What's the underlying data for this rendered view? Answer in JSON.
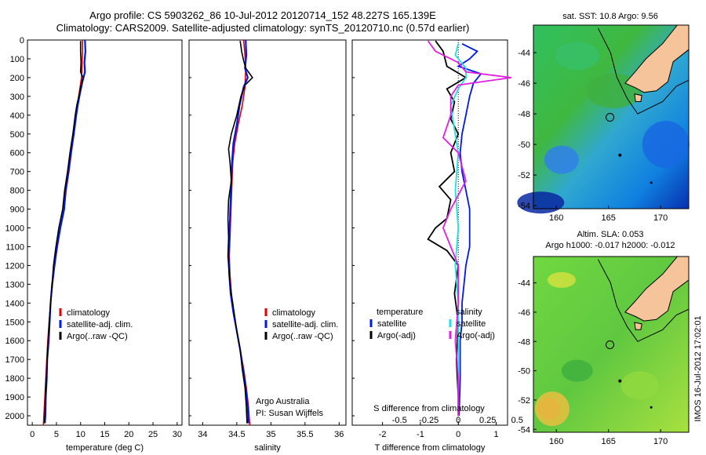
{
  "title_line1": "Argo profile: CS 5903262_86 10-Jul-2012 20120714_152 48.227S 165.139E",
  "title_line2": "Climatology: CARS2009. Satellite-adjusted climatology: synTS_20120710.nc (0.57d earlier)",
  "vertical_stamp": "IMOS 16-Jul-2012 17:02:01",
  "colors": {
    "climatology": "#e00000",
    "satellite": "#0018e8",
    "argo": "#000000",
    "sal_satellite": "#20e0e0",
    "sal_argo": "#e020e0",
    "land": "#f5c49a"
  },
  "chart_data": [
    {
      "type": "line",
      "panel": "temperature",
      "xlabel": "temperature (deg C)",
      "ylabel": "",
      "xlim": [
        -1,
        31
      ],
      "ylim": [
        2050,
        0
      ],
      "xticks": [
        0,
        5,
        10,
        15,
        20,
        25,
        30
      ],
      "yticks": [
        0,
        100,
        200,
        300,
        400,
        500,
        600,
        700,
        800,
        900,
        1000,
        1100,
        1200,
        1300,
        1400,
        1500,
        1600,
        1700,
        1800,
        1900,
        2000
      ],
      "legend": [
        "climatology",
        "satellite-adj. clim.",
        "Argo(..raw -QC)"
      ],
      "legend_position": "bottom-center",
      "series": [
        {
          "name": "climatology",
          "points": [
            [
              10.4,
              0
            ],
            [
              10.4,
              60
            ],
            [
              10.3,
              120
            ],
            [
              10.2,
              200
            ],
            [
              9.9,
              250
            ],
            [
              9.6,
              300
            ],
            [
              9.1,
              400
            ],
            [
              8.6,
              500
            ],
            [
              8.1,
              600
            ],
            [
              7.6,
              700
            ],
            [
              7.0,
              800
            ],
            [
              6.6,
              900
            ],
            [
              5.8,
              1000
            ],
            [
              5.2,
              1100
            ],
            [
              4.6,
              1200
            ],
            [
              4.2,
              1300
            ],
            [
              3.8,
              1400
            ],
            [
              3.5,
              1500
            ],
            [
              3.2,
              1600
            ],
            [
              3.0,
              1700
            ],
            [
              2.8,
              1800
            ],
            [
              2.6,
              1900
            ],
            [
              2.4,
              2000
            ],
            [
              2.3,
              2050
            ]
          ]
        },
        {
          "name": "satellite-adj. clim.",
          "points": [
            [
              10.9,
              0
            ],
            [
              11.0,
              60
            ],
            [
              10.8,
              120
            ],
            [
              10.9,
              170
            ],
            [
              10.4,
              220
            ],
            [
              9.9,
              280
            ],
            [
              9.4,
              350
            ],
            [
              9.1,
              400
            ],
            [
              8.6,
              500
            ],
            [
              8.0,
              600
            ],
            [
              7.5,
              700
            ],
            [
              6.9,
              800
            ],
            [
              6.6,
              900
            ],
            [
              5.8,
              1000
            ],
            [
              5.1,
              1100
            ],
            [
              4.6,
              1200
            ],
            [
              4.1,
              1300
            ],
            [
              3.8,
              1400
            ],
            [
              3.6,
              1500
            ],
            [
              3.4,
              1600
            ],
            [
              3.1,
              1700
            ],
            [
              3.0,
              1800
            ],
            [
              2.8,
              1900
            ],
            [
              2.7,
              2000
            ],
            [
              2.6,
              2040
            ]
          ]
        },
        {
          "name": "Argo(..raw -QC)",
          "points": [
            [
              10.0,
              5
            ],
            [
              10.0,
              60
            ],
            [
              10.1,
              120
            ],
            [
              10.0,
              170
            ],
            [
              10.5,
              200
            ],
            [
              10.2,
              230
            ],
            [
              9.8,
              280
            ],
            [
              9.2,
              350
            ],
            [
              8.9,
              400
            ],
            [
              8.4,
              500
            ],
            [
              7.8,
              600
            ],
            [
              7.3,
              700
            ],
            [
              6.7,
              800
            ],
            [
              6.3,
              900
            ],
            [
              5.5,
              1000
            ],
            [
              4.9,
              1100
            ],
            [
              4.4,
              1200
            ],
            [
              4.1,
              1300
            ],
            [
              3.8,
              1400
            ],
            [
              3.5,
              1500
            ],
            [
              3.3,
              1600
            ],
            [
              3.1,
              1700
            ],
            [
              2.9,
              1800
            ],
            [
              2.7,
              1900
            ],
            [
              2.6,
              2000
            ],
            [
              2.5,
              2040
            ]
          ]
        }
      ]
    },
    {
      "type": "line",
      "panel": "salinity",
      "xlabel": "salinity",
      "ylabel": "",
      "xlim": [
        33.8,
        36.1
      ],
      "ylim": [
        2050,
        0
      ],
      "xticks": [
        34,
        34.5,
        35,
        35.5,
        36
      ],
      "legend": [
        "climatology",
        "satellite-adj. clim.",
        "Argo(..raw -QC)"
      ],
      "legend_position": "bottom-center",
      "annotations": [
        "Argo Australia",
        "PI: Susan Wijffels"
      ],
      "series": [
        {
          "name": "climatology",
          "points": [
            [
              34.6,
              0
            ],
            [
              34.62,
              80
            ],
            [
              34.63,
              150
            ],
            [
              34.62,
              250
            ],
            [
              34.58,
              350
            ],
            [
              34.52,
              450
            ],
            [
              34.47,
              550
            ],
            [
              34.44,
              650
            ],
            [
              34.43,
              750
            ],
            [
              34.42,
              850
            ],
            [
              34.41,
              950
            ],
            [
              34.4,
              1050
            ],
            [
              34.39,
              1150
            ],
            [
              34.4,
              1250
            ],
            [
              34.42,
              1350
            ],
            [
              34.45,
              1450
            ],
            [
              34.5,
              1550
            ],
            [
              34.55,
              1650
            ],
            [
              34.6,
              1750
            ],
            [
              34.64,
              1850
            ],
            [
              34.67,
              1950
            ],
            [
              34.69,
              2050
            ]
          ]
        },
        {
          "name": "satellite-adj. clim.",
          "points": [
            [
              34.63,
              0
            ],
            [
              34.64,
              80
            ],
            [
              34.62,
              150
            ],
            [
              34.66,
              200
            ],
            [
              34.6,
              250
            ],
            [
              34.54,
              350
            ],
            [
              34.5,
              450
            ],
            [
              34.45,
              550
            ],
            [
              34.43,
              650
            ],
            [
              34.42,
              750
            ],
            [
              34.41,
              850
            ],
            [
              34.4,
              950
            ],
            [
              34.39,
              1050
            ],
            [
              34.38,
              1150
            ],
            [
              34.39,
              1250
            ],
            [
              34.41,
              1350
            ],
            [
              34.45,
              1450
            ],
            [
              34.5,
              1550
            ],
            [
              34.55,
              1650
            ],
            [
              34.59,
              1750
            ],
            [
              34.63,
              1850
            ],
            [
              34.66,
              1950
            ],
            [
              34.67,
              2040
            ]
          ]
        },
        {
          "name": "Argo(..raw -QC)",
          "points": [
            [
              34.55,
              5
            ],
            [
              34.57,
              60
            ],
            [
              34.6,
              110
            ],
            [
              34.63,
              150
            ],
            [
              34.73,
              200
            ],
            [
              34.62,
              240
            ],
            [
              34.56,
              300
            ],
            [
              34.5,
              400
            ],
            [
              34.42,
              500
            ],
            [
              34.38,
              580
            ],
            [
              34.4,
              650
            ],
            [
              34.42,
              750
            ],
            [
              34.38,
              850
            ],
            [
              34.37,
              950
            ],
            [
              34.38,
              1050
            ],
            [
              34.37,
              1150
            ],
            [
              34.39,
              1250
            ],
            [
              34.42,
              1350
            ],
            [
              34.46,
              1450
            ],
            [
              34.5,
              1550
            ],
            [
              34.55,
              1650
            ],
            [
              34.58,
              1750
            ],
            [
              34.62,
              1850
            ],
            [
              34.64,
              1950
            ],
            [
              34.65,
              2040
            ]
          ]
        }
      ]
    },
    {
      "type": "line",
      "panel": "differences",
      "xlabel": "T difference from climatology",
      "ylabel": "",
      "xlim": [
        -2.8,
        1.3
      ],
      "ylim": [
        2050,
        0
      ],
      "xticks_T": [
        -2,
        -1,
        0,
        1
      ],
      "top_axis_label": "S difference from climatology",
      "xticks_S": [
        "-0.5",
        "-0.25",
        "0",
        "0.25",
        "0.5"
      ],
      "legend_T_header": "temperature",
      "legend_S_header": "salinity",
      "legend": [
        "satellite",
        "Argo(-adj)",
        "satellite",
        "Argo(-adj)"
      ],
      "legend_position": "bottom-center",
      "series": [
        {
          "name": "satellite",
          "group": "temperature",
          "points": [
            [
              0.1,
              20
            ],
            [
              0.5,
              60
            ],
            [
              0.3,
              100
            ],
            [
              0.0,
              140
            ],
            [
              0.6,
              180
            ],
            [
              0.4,
              230
            ],
            [
              0.3,
              300
            ],
            [
              0.2,
              400
            ],
            [
              0.1,
              500
            ],
            [
              0.05,
              600
            ],
            [
              0.1,
              700
            ],
            [
              0.2,
              800
            ],
            [
              0.3,
              900
            ],
            [
              0.3,
              1000
            ],
            [
              0.3,
              1100
            ],
            [
              0.2,
              1200
            ],
            [
              0.15,
              1300
            ],
            [
              0.1,
              1400
            ],
            [
              0.1,
              1500
            ],
            [
              0.05,
              1600
            ],
            [
              0.05,
              1800
            ],
            [
              0.02,
              2000
            ]
          ]
        },
        {
          "name": "Argo(-adj)",
          "group": "temperature",
          "points": [
            [
              -0.6,
              5
            ],
            [
              -0.4,
              60
            ],
            [
              -0.3,
              140
            ],
            [
              0.2,
              200
            ],
            [
              -0.3,
              260
            ],
            [
              -0.1,
              330
            ],
            [
              -0.2,
              420
            ],
            [
              0.0,
              500
            ],
            [
              -0.2,
              600
            ],
            [
              -0.1,
              700
            ],
            [
              -0.5,
              780
            ],
            [
              -0.2,
              850
            ],
            [
              -0.3,
              950
            ],
            [
              -0.6,
              1000
            ],
            [
              -0.8,
              1060
            ],
            [
              -0.3,
              1120
            ],
            [
              0.0,
              1200
            ],
            [
              -0.1,
              1350
            ],
            [
              0.0,
              1500
            ],
            [
              -0.05,
              1700
            ],
            [
              0.0,
              1900
            ],
            [
              0.0,
              2000
            ]
          ]
        },
        {
          "name": "satellite",
          "group": "salinity",
          "points": [
            [
              0.0,
              20
            ],
            [
              -0.02,
              80
            ],
            [
              0.05,
              150
            ],
            [
              0.05,
              200
            ],
            [
              0.0,
              260
            ],
            [
              -0.05,
              350
            ],
            [
              -0.03,
              450
            ],
            [
              0.0,
              600
            ],
            [
              -0.02,
              800
            ],
            [
              0.0,
              1000
            ],
            [
              -0.02,
              1200
            ],
            [
              0.0,
              1400
            ],
            [
              0.0,
              1600
            ],
            [
              0.0,
              1800
            ],
            [
              0.0,
              2000
            ]
          ]
        },
        {
          "name": "Argo(-adj)",
          "group": "salinity",
          "points": [
            [
              -0.2,
              5
            ],
            [
              -0.15,
              60
            ],
            [
              0.0,
              120
            ],
            [
              0.05,
              170
            ],
            [
              0.35,
              200
            ],
            [
              0.0,
              240
            ],
            [
              -0.05,
              300
            ],
            [
              -0.05,
              400
            ],
            [
              -0.1,
              520
            ],
            [
              0.0,
              600
            ],
            [
              0.05,
              750
            ],
            [
              -0.05,
              900
            ],
            [
              -0.1,
              1000
            ],
            [
              -0.05,
              1100
            ],
            [
              0.0,
              1200
            ],
            [
              0.0,
              1400
            ],
            [
              -0.02,
              1600
            ],
            [
              0.0,
              1800
            ],
            [
              0.0,
              2000
            ]
          ]
        }
      ]
    },
    {
      "type": "heatmap",
      "panel": "sst_map",
      "title": "sat. SST: 10.8  Argo: 9.56",
      "xticks": [
        160,
        165,
        170
      ],
      "yticks": [
        -44,
        -46,
        -48,
        -50,
        -52,
        -54
      ],
      "xlim": [
        157.8,
        172.7
      ],
      "ylim": [
        -54.2,
        -42.2
      ],
      "marker": {
        "lon": 165.139,
        "lat": -48.227
      }
    },
    {
      "type": "heatmap",
      "panel": "sla_map",
      "title": "Altim. SLA: 0.053",
      "subtitle": "Argo h1000: -0.017 h2000: -0.012",
      "xticks": [
        160,
        165,
        170
      ],
      "yticks": [
        -44,
        -46,
        -48,
        -50,
        -52,
        -54
      ],
      "xlim": [
        157.8,
        172.7
      ],
      "ylim": [
        -54.2,
        -42.2
      ],
      "marker": {
        "lon": 165.139,
        "lat": -48.227
      }
    }
  ]
}
